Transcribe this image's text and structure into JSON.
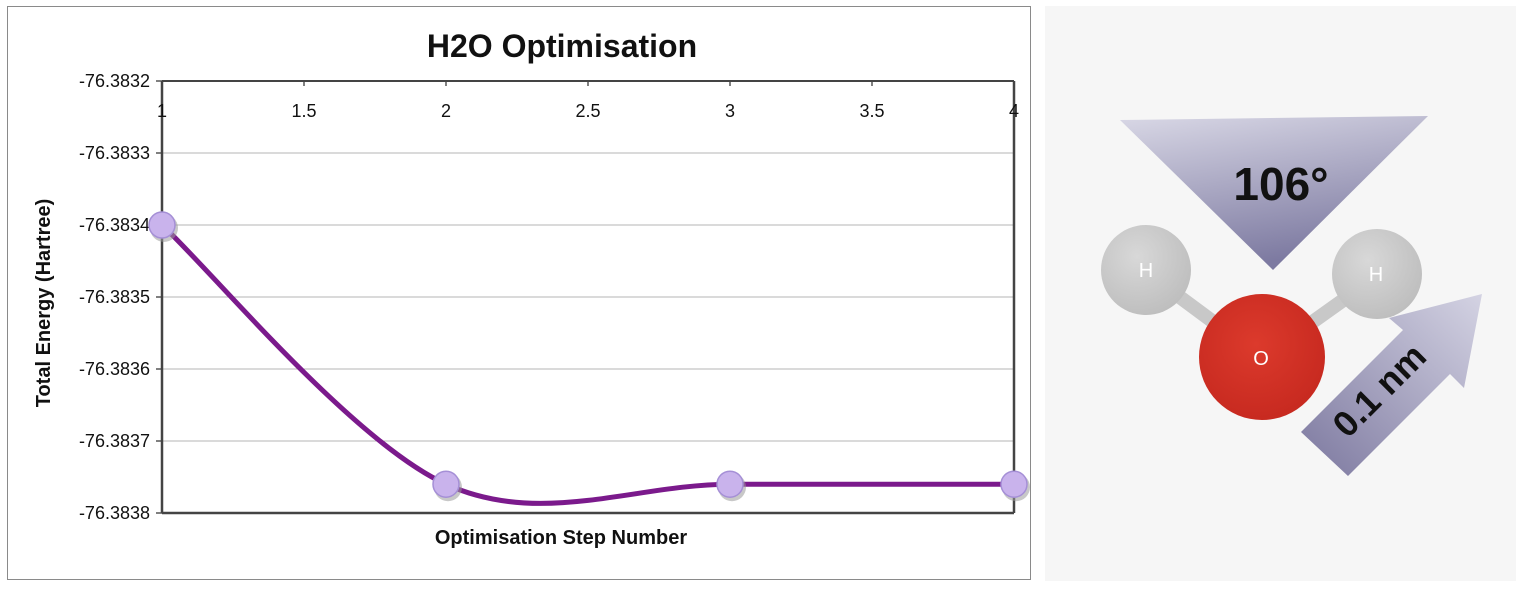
{
  "chart_data": {
    "type": "line",
    "title": "H2O Optimisation",
    "xlabel": "Optimisation Step Number",
    "ylabel": "Total Energy (Hartree)",
    "xlim": [
      1,
      4
    ],
    "ylim": [
      -76.3838,
      -76.3832
    ],
    "x_ticks": [
      "1",
      "1.5",
      "2",
      "2.5",
      "3",
      "3.5",
      "4"
    ],
    "y_ticks": [
      "-76.3832",
      "-76.3833",
      "-76.3834",
      "-76.3835",
      "-76.3836",
      "-76.3837",
      "-76.3838"
    ],
    "grid": true,
    "legend": "none",
    "smooth": true,
    "series": [
      {
        "x": [
          1,
          2,
          3,
          4
        ],
        "values": [
          -76.3834,
          -76.38376,
          -76.38376,
          -76.38376
        ]
      }
    ],
    "line_color": "#7b1a8c",
    "marker_color": "#c9b3ec"
  },
  "molecule": {
    "angle_label": "106°",
    "length_label": "0.1 nm",
    "atoms": [
      "H",
      "O",
      "H"
    ],
    "oxygen_color": "#d32f26",
    "hydrogen_color": "#c8c8c8",
    "arrow_color": "#8b87ad"
  }
}
